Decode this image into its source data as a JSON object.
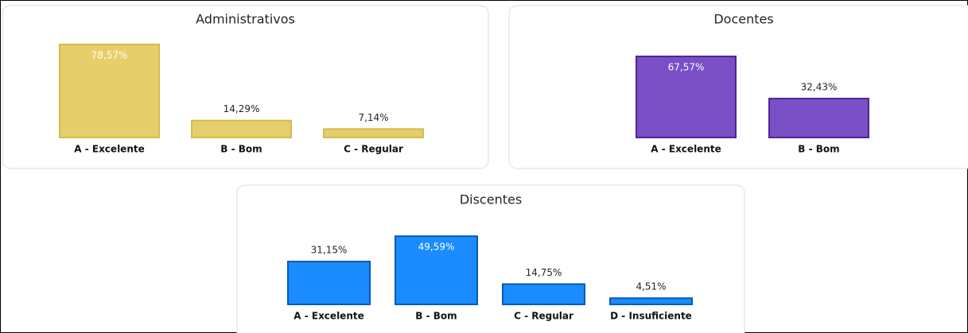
{
  "chart_data": [
    {
      "type": "bar",
      "title": "Administrativos",
      "categories": [
        "A - Excelente",
        "B - Bom",
        "C - Regular"
      ],
      "values": [
        78.57,
        14.29,
        7.14
      ],
      "value_labels": [
        "78,57%",
        "14,29%",
        "7,14%"
      ],
      "color": "#e6cf6a",
      "border_color": "#d4bb4e"
    },
    {
      "type": "bar",
      "title": "Docentes",
      "categories": [
        "A - Excelente",
        "B - Bom"
      ],
      "values": [
        67.57,
        32.43
      ],
      "value_labels": [
        "67,57%",
        "32,43%"
      ],
      "color": "#7a4fc6",
      "border_color": "#4f2598"
    },
    {
      "type": "bar",
      "title": "Discentes",
      "categories": [
        "A - Excelente",
        "B - Bom",
        "C - Regular",
        "D - Insuficiente"
      ],
      "values": [
        31.15,
        49.59,
        14.75,
        4.51
      ],
      "value_labels": [
        "31,15%",
        "49,59%",
        "14,75%",
        "4,51%"
      ],
      "color": "#1a8cff",
      "border_color": "#0a58b8"
    }
  ]
}
